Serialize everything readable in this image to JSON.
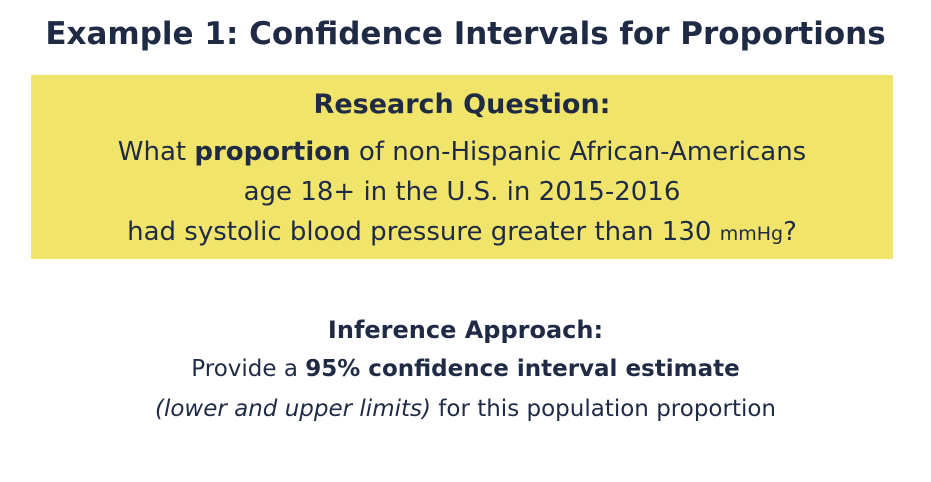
{
  "title": "Example 1: Confidence Intervals for Proportions",
  "research": {
    "heading": "Research Question:",
    "line1_pre": "What ",
    "line1_bold": "proportion",
    "line1_post": " of non-Hispanic African-Americans",
    "line2": "age 18+ in the U.S. in 2015-2016",
    "line3_pre": "had systolic blood pressure greater than 130 ",
    "line3_unit": "mmHg",
    "line3_post": "?"
  },
  "inference": {
    "heading": "Inference Approach:",
    "line1_pre": "Provide a ",
    "line1_bold": "95% confidence interval estimate",
    "line2_italic": "(lower and upper limits)",
    "line2_post": " for this population proportion"
  },
  "colors": {
    "highlight": "#f1e46a",
    "text": "#1f2a44",
    "background": "#ffffff"
  }
}
